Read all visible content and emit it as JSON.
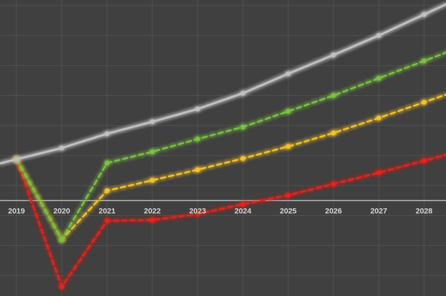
{
  "chart_data": {
    "type": "line",
    "title": "",
    "xlabel": "",
    "ylabel": "",
    "categories": [
      "2019",
      "2020",
      "2021",
      "2022",
      "2023",
      "2024",
      "2025",
      "2026",
      "2027",
      "2028"
    ],
    "ylim": [
      -12,
      26
    ],
    "grid": true,
    "legend": "none",
    "series": [
      {
        "color": "#c0c0c0",
        "style": "solid",
        "values": [
          5.5,
          7.0,
          8.9,
          10.5,
          12.2,
          14.3,
          16.9,
          19.4,
          22.0,
          24.8
        ]
      },
      {
        "color": "#7ac142",
        "style": "dashed",
        "values": [
          5.5,
          -5.2,
          5.0,
          6.5,
          8.2,
          9.8,
          11.9,
          14.0,
          16.3,
          18.6
        ]
      },
      {
        "color": "#f2c12e",
        "style": "dashed",
        "values": [
          5.5,
          -5.2,
          1.3,
          2.7,
          4.1,
          5.6,
          7.2,
          9.0,
          11.0,
          13.1
        ]
      },
      {
        "color": "#e8201c",
        "style": "dashed",
        "values": [
          5.5,
          -11.5,
          -2.7,
          -2.6,
          -1.8,
          -0.5,
          0.7,
          2.2,
          3.7,
          5.3
        ]
      }
    ]
  }
}
